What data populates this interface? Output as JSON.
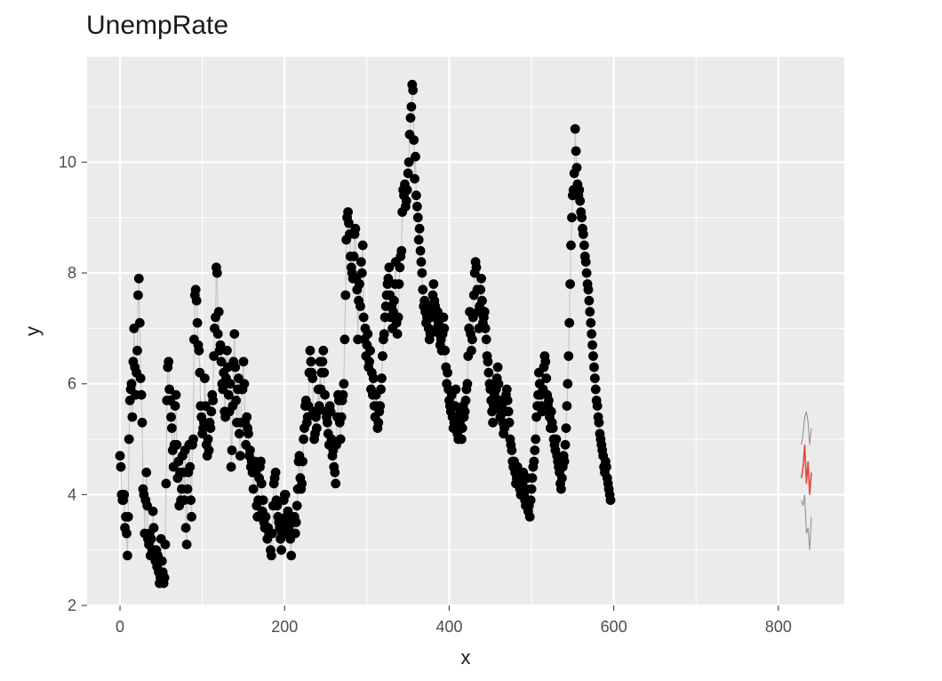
{
  "chart_data": {
    "type": "scatter",
    "title": "UnempRate",
    "xlabel": "x",
    "ylabel": "y",
    "xlim": [
      -40,
      880
    ],
    "ylim": [
      2,
      11.9
    ],
    "xticks": [
      0,
      200,
      400,
      600,
      800
    ],
    "yticks": [
      2,
      4,
      6,
      8,
      10
    ],
    "grid": true,
    "legend": "none",
    "colors": {
      "panel_bg": "#ebebeb",
      "grid_major": "#ffffff",
      "points": "#000000",
      "line": "#c8c8c8",
      "forecast": "#e8453c",
      "forecast_band": "#8c8c8c"
    },
    "series": [
      {
        "x_start": 0,
        "x_step": 1,
        "values": [
          4.7,
          4.5,
          4.0,
          3.9,
          3.9,
          4.0,
          3.4,
          3.6,
          3.3,
          2.9,
          3.6,
          5.0,
          5.7,
          5.9,
          6.0,
          5.4,
          6.4,
          7.0,
          6.3,
          5.8,
          6.2,
          6.6,
          7.6,
          7.9,
          7.1,
          6.1,
          5.8,
          5.3,
          4.1,
          4.0,
          3.3,
          3.9,
          4.4,
          3.8,
          3.2,
          3.1,
          3.3,
          2.9,
          3.2,
          3.0,
          3.7,
          3.4,
          2.9,
          2.8,
          3.0,
          2.7,
          2.9,
          2.6,
          2.4,
          2.5,
          3.2,
          2.8,
          2.6,
          2.4,
          2.5,
          3.1,
          4.2,
          5.7,
          6.3,
          6.4,
          5.9,
          5.7,
          5.4,
          5.2,
          4.8,
          4.5,
          4.9,
          5.6,
          5.8,
          4.9,
          4.3,
          4.6,
          3.8,
          4.4,
          3.9,
          4.1,
          4.7,
          4.4,
          3.9,
          4.8,
          3.4,
          3.1,
          4.1,
          4.4,
          4.9,
          4.5,
          3.9,
          3.6,
          4.9,
          5.0,
          6.8,
          7.6,
          7.7,
          7.5,
          7.1,
          6.7,
          6.6,
          6.2,
          5.6,
          5.4,
          5.1,
          5.2,
          5.3,
          6.1,
          5.6,
          4.9,
          4.7,
          5.0,
          4.8,
          5.3,
          5.2,
          5.5,
          5.8,
          5.7,
          6.5,
          7.0,
          7.2,
          8.1,
          8.0,
          6.9,
          7.3,
          6.6,
          6.7,
          6.4,
          6.0,
          5.9,
          6.2,
          5.5,
          5.4,
          6.1,
          6.6,
          6.3,
          5.8,
          5.5,
          6.0,
          4.5,
          4.8,
          5.6,
          6.4,
          6.9,
          6.3,
          5.7,
          5.3,
          5.9,
          6.1,
          5.1,
          4.7,
          5.3,
          5.9,
          5.9,
          6.4,
          6.0,
          5.3,
          4.9,
          5.4,
          5.2,
          5.1,
          4.7,
          4.8,
          4.5,
          4.6,
          4.4,
          4.1,
          4.4,
          4.6,
          4.4,
          3.8,
          3.6,
          3.9,
          4.3,
          4.5,
          4.6,
          4.2,
          3.7,
          3.9,
          3.5,
          3.4,
          3.6,
          3.4,
          3.2,
          3.4,
          3.3,
          3.3,
          3.0,
          2.9,
          3.3,
          3.8,
          4.2,
          4.3,
          4.4,
          3.9,
          3.8,
          3.6,
          3.5,
          3.4,
          3.2,
          3.0,
          3.3,
          3.5,
          3.9,
          4.0,
          4.0,
          3.6,
          3.3,
          3.7,
          3.4,
          3.3,
          3.2,
          2.9,
          3.5,
          3.6,
          3.5,
          3.6,
          3.3,
          3.5,
          3.8,
          4.1,
          4.6,
          4.7,
          4.3,
          4.1,
          4.2,
          4.6,
          5.0,
          5.2,
          5.6,
          5.7,
          5.3,
          5.4,
          5.6,
          6.2,
          6.6,
          6.4,
          6.2,
          6.1,
          5.5,
          5.0,
          5.1,
          5.4,
          5.2,
          5.5,
          5.9,
          5.6,
          6.4,
          5.9,
          6.2,
          6.4,
          6.6,
          6.2,
          5.8,
          5.5,
          5.4,
          5.3,
          5.1,
          4.9,
          5.6,
          5.5,
          5.0,
          4.7,
          4.8,
          4.5,
          4.4,
          4.2,
          4.9,
          5.4,
          5.8,
          5.7,
          5.3,
          5.0,
          5.4,
          5.7,
          5.8,
          6.0,
          6.8,
          7.6,
          8.6,
          9.0,
          9.1,
          8.9,
          8.7,
          8.3,
          8.1,
          8.0,
          7.9,
          8.3,
          8.7,
          8.8,
          7.9,
          7.7,
          6.8,
          7.5,
          7.8,
          7.4,
          8.2,
          8.0,
          8.5,
          7.2,
          6.8,
          7.0,
          6.5,
          6.7,
          6.9,
          6.3,
          6.4,
          6.6,
          5.9,
          6.2,
          5.8,
          6.1,
          5.6,
          5.4,
          5.8,
          5.6,
          5.2,
          5.3,
          5.5,
          5.6,
          5.9,
          6.1,
          6.5,
          6.8,
          6.9,
          7.2,
          7.4,
          7.6,
          7.8,
          7.9,
          8.1,
          7.6,
          7.2,
          7.4,
          7.0,
          7.3,
          7.5,
          7.8,
          8.2,
          7.1,
          6.9,
          7.2,
          7.8,
          8.1,
          8.3,
          8.4,
          9.1,
          9.5,
          9.4,
          9.6,
          9.2,
          9.3,
          9.5,
          9.8,
          10.0,
          10.5,
          10.8,
          11.0,
          11.4,
          11.3,
          10.4,
          9.7,
          10.1,
          9.4,
          9.2,
          9.0,
          8.6,
          8.8,
          8.4,
          8.2,
          8.0,
          7.7,
          7.4,
          7.5,
          7.3,
          7.1,
          7.2,
          7.4,
          7.0,
          6.8,
          6.9,
          7.2,
          7.3,
          7.6,
          7.8,
          7.5,
          7.4,
          7.2,
          7.0,
          7.3,
          7.1,
          6.9,
          6.7,
          6.8,
          6.6,
          6.9,
          7.2,
          7.0,
          6.6,
          6.3,
          6.0,
          6.2,
          5.9,
          5.7,
          5.6,
          5.5,
          5.8,
          5.4,
          5.2,
          5.3,
          5.6,
          5.9,
          5.4,
          5.1,
          5.0,
          5.4,
          5.3,
          5.5,
          5.0,
          5.2,
          5.6,
          5.4,
          5.5,
          5.7,
          5.9,
          6.0,
          6.5,
          7.0,
          7.3,
          6.9,
          6.6,
          6.8,
          7.2,
          7.6,
          8.0,
          8.2,
          8.1,
          7.7,
          7.3,
          7.0,
          7.4,
          7.7,
          7.9,
          7.5,
          7.1,
          7.2,
          7.3,
          7.0,
          6.8,
          6.5,
          6.4,
          6.2,
          6.0,
          5.9,
          5.7,
          5.5,
          5.3,
          5.6,
          5.8,
          5.6,
          5.9,
          6.1,
          6.3,
          6.0,
          5.7,
          5.4,
          5.5,
          5.6,
          5.3,
          5.1,
          5.2,
          5.5,
          5.8,
          5.9,
          5.7,
          5.5,
          5.3,
          5.0,
          4.9,
          4.8,
          4.6,
          4.5,
          4.6,
          4.4,
          4.2,
          4.3,
          4.5,
          4.4,
          4.2,
          4.1,
          4.0,
          4.3,
          4.2,
          4.4,
          4.0,
          3.9,
          3.8,
          4.1,
          4.3,
          3.7,
          3.8,
          3.6,
          3.9,
          4.1,
          4.3,
          4.5,
          4.6,
          4.8,
          5.0,
          5.4,
          5.6,
          5.8,
          6.2,
          6.0,
          5.8,
          5.6,
          5.5,
          5.9,
          6.3,
          6.5,
          6.4,
          6.1,
          5.8,
          5.6,
          5.7,
          5.4,
          5.2,
          5.5,
          5.3,
          5.2,
          5.0,
          4.9,
          4.8,
          5.0,
          4.7,
          4.6,
          4.5,
          4.4,
          4.2,
          4.1,
          4.3,
          4.5,
          4.7,
          4.6,
          4.9,
          5.2,
          5.6,
          6.0,
          6.5,
          7.1,
          7.8,
          8.5,
          9.0,
          9.4,
          9.5,
          9.8,
          10.6,
          10.2,
          9.9,
          9.6,
          9.4,
          9.5,
          9.3,
          9.1,
          9.0,
          8.8,
          8.7,
          8.5,
          8.3,
          8.2,
          8.0,
          7.8,
          7.7,
          7.5,
          7.3,
          7.1,
          6.9,
          6.7,
          6.5,
          6.3,
          6.1,
          5.9,
          5.7,
          5.6,
          5.4,
          5.3,
          5.1,
          5.0,
          4.9,
          4.8,
          4.7,
          4.5,
          4.4,
          4.6,
          4.5,
          4.3,
          4.2,
          4.1,
          4.0,
          3.9
        ]
      }
    ],
    "forecast": {
      "x": [
        828,
        830,
        832,
        834,
        836,
        838,
        840
      ],
      "values": [
        4.3,
        4.5,
        4.9,
        4.2,
        4.6,
        4.0,
        4.4
      ],
      "lower": [
        3.9,
        3.8,
        4.0,
        3.3,
        3.4,
        3.0,
        3.6
      ],
      "upper": [
        4.9,
        5.1,
        5.4,
        5.5,
        5.3,
        4.9,
        5.2
      ]
    }
  }
}
